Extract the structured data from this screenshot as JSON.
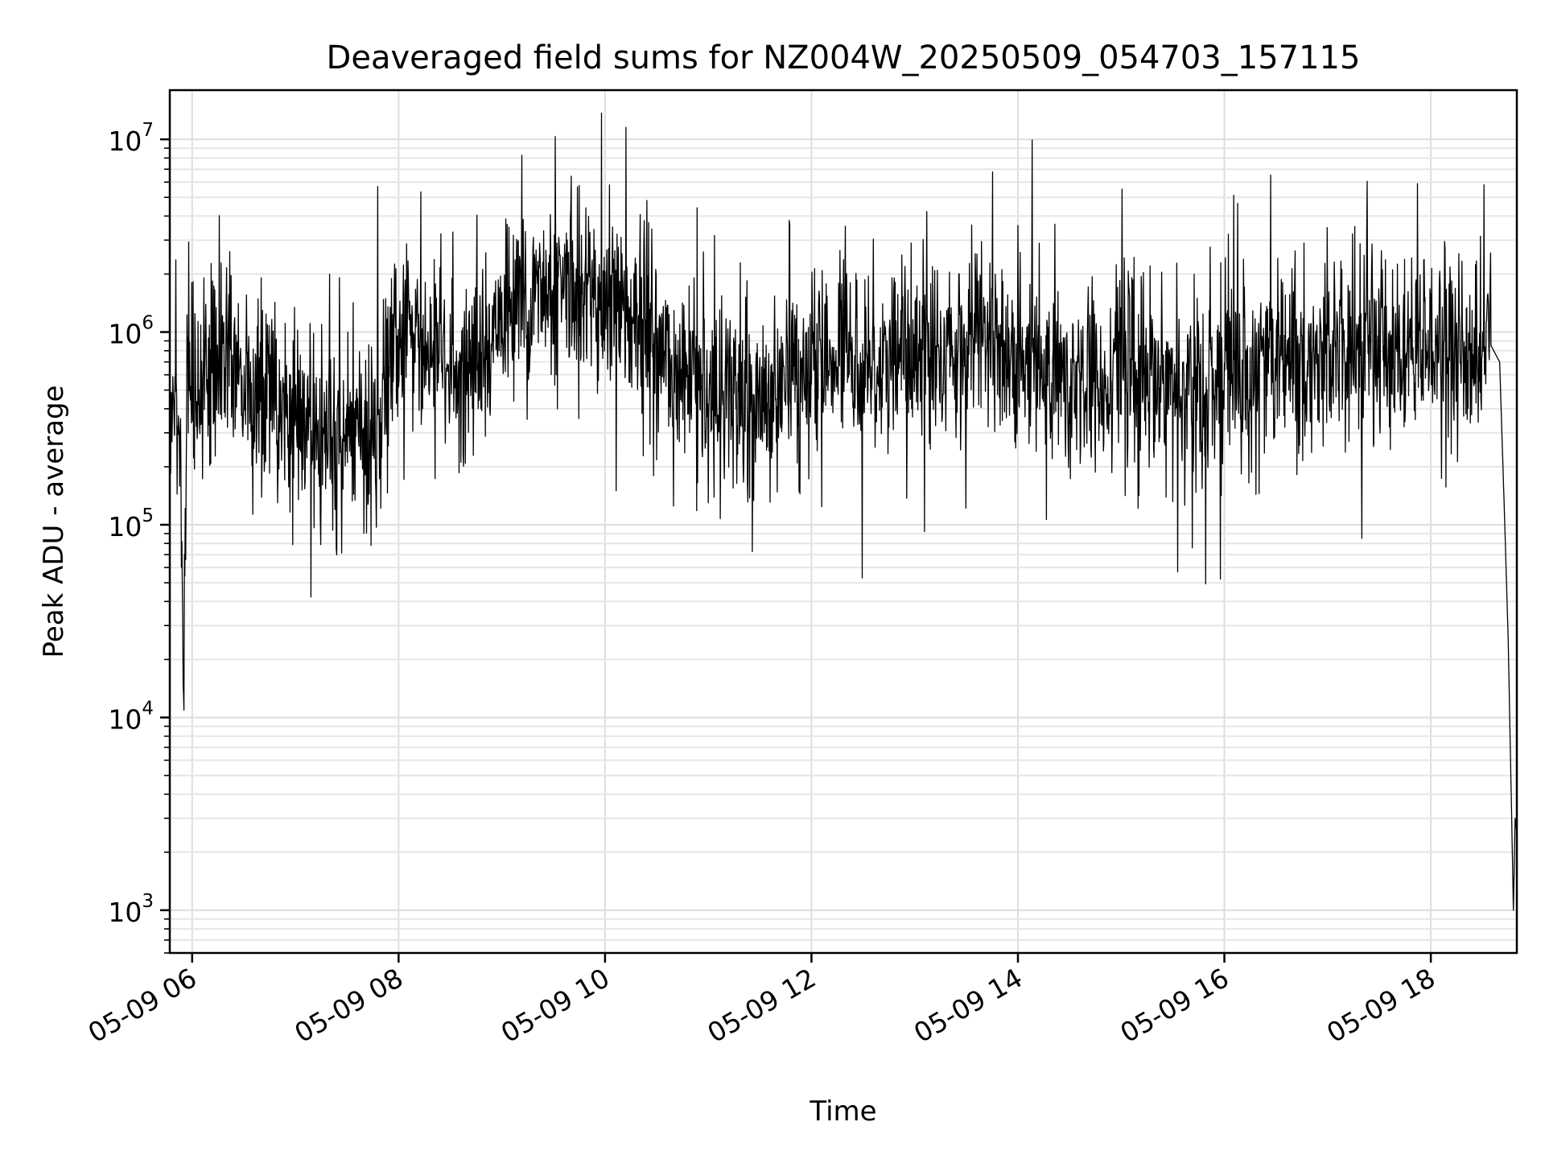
{
  "chart_data": {
    "type": "line",
    "title": "Deaveraged field sums for NZ004W_20250509_054703_157115",
    "xlabel": "Time",
    "ylabel": "Peak ADU - average",
    "y_scale": "log",
    "ylim": [
      600,
      18000000
    ],
    "xlim": [
      "05-09 05:47",
      "05-09 18:50"
    ],
    "grid": true,
    "line_color": "#000000",
    "x_ticks": [
      {
        "label": "05-09 06",
        "value": "05-09 06:00"
      },
      {
        "label": "05-09 08",
        "value": "05-09 08:00"
      },
      {
        "label": "05-09 10",
        "value": "05-09 10:00"
      },
      {
        "label": "05-09 12",
        "value": "05-09 12:00"
      },
      {
        "label": "05-09 14",
        "value": "05-09 14:00"
      },
      {
        "label": "05-09 16",
        "value": "05-09 16:00"
      },
      {
        "label": "05-09 18",
        "value": "05-09 18:00"
      }
    ],
    "y_ticks": [
      {
        "base": "10",
        "exp": "3",
        "value": 1000
      },
      {
        "base": "10",
        "exp": "4",
        "value": 10000
      },
      {
        "base": "10",
        "exp": "5",
        "value": 100000
      },
      {
        "base": "10",
        "exp": "6",
        "value": 1000000
      },
      {
        "base": "10",
        "exp": "7",
        "value": 10000000
      }
    ],
    "series": [
      {
        "x": [
          "05-09 05:47",
          "05-09 05:50",
          "05-09 05:53",
          "05-09 05:55",
          "05-09 05:57",
          "05-09 05:59",
          "05-09 06:05",
          "05-09 06:10",
          "05-09 06:15",
          "05-09 06:20",
          "05-09 06:25",
          "05-09 06:30",
          "05-09 06:35",
          "05-09 06:45",
          "05-09 07:00",
          "05-09 07:15",
          "05-09 07:30",
          "05-09 07:45",
          "05-09 08:00",
          "05-09 08:15",
          "05-09 08:30",
          "05-09 08:45",
          "05-09 09:00",
          "05-09 09:15",
          "05-09 09:30",
          "05-09 09:45",
          "05-09 10:00",
          "05-09 10:15",
          "05-09 10:30",
          "05-09 10:45",
          "05-09 11:00",
          "05-09 11:15",
          "05-09 11:30",
          "05-09 11:45",
          "05-09 12:00",
          "05-09 12:15",
          "05-09 12:30",
          "05-09 12:45",
          "05-09 13:00",
          "05-09 13:15",
          "05-09 13:30",
          "05-09 13:45",
          "05-09 14:00",
          "05-09 14:15",
          "05-09 14:30",
          "05-09 14:45",
          "05-09 15:00",
          "05-09 15:15",
          "05-09 15:30",
          "05-09 15:45",
          "05-09 16:00",
          "05-09 16:15",
          "05-09 16:30",
          "05-09 16:45",
          "05-09 17:00",
          "05-09 17:15",
          "05-09 17:30",
          "05-09 17:45",
          "05-09 18:00",
          "05-09 18:15",
          "05-09 18:35",
          "05-09 18:40",
          "05-09 18:43",
          "05-09 18:45",
          "05-09 18:47",
          "05-09 18:48",
          "05-09 18:49",
          "05-09 18:50"
        ],
        "y": [
          350000,
          500000,
          250000,
          17000,
          600000,
          450000,
          550000,
          650000,
          700000,
          900000,
          600000,
          500000,
          450000,
          400000,
          350000,
          300000,
          280000,
          300000,
          900000,
          800000,
          600000,
          700000,
          1200000,
          1500000,
          1600000,
          1800000,
          1500000,
          1200000,
          800000,
          600000,
          450000,
          420000,
          450000,
          500000,
          700000,
          800000,
          750000,
          700000,
          750000,
          800000,
          900000,
          850000,
          750000,
          600000,
          550000,
          600000,
          700000,
          650000,
          500000,
          450000,
          600000,
          650000,
          700000,
          750000,
          800000,
          850000,
          900000,
          850000,
          800000,
          850000,
          850000,
          700000,
          100000,
          25000,
          3000,
          1000,
          3000,
          2500
        ]
      }
    ]
  }
}
